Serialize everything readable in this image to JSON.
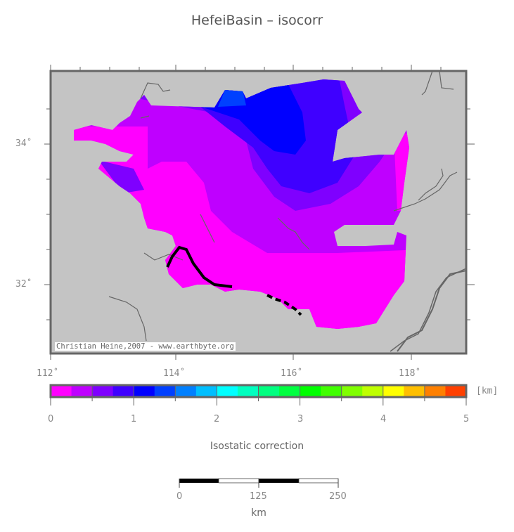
{
  "title": "HefeiBasin – isocorr",
  "map": {
    "lon_labels": [
      "112˚",
      "114˚",
      "116˚",
      "118˚"
    ],
    "lat_labels": [
      "34˚",
      "32˚"
    ],
    "credit": "Christian Heine,2007 - www.earthbyte.org",
    "background_color": "#c4c4c4"
  },
  "colorbar": {
    "unit": "[km]",
    "tick_labels": [
      "0",
      "1",
      "2",
      "3",
      "4",
      "5"
    ],
    "title": "Isostatic correction",
    "range": [
      0,
      5
    ],
    "colors": [
      "#ff00ff",
      "#bf00ff",
      "#7f00ff",
      "#3f00ff",
      "#0000ff",
      "#0040ff",
      "#0080ff",
      "#00bfff",
      "#00ffff",
      "#00ffbf",
      "#00ff80",
      "#00ff40",
      "#00ff00",
      "#40ff00",
      "#80ff00",
      "#bfff00",
      "#ffff00",
      "#ffbf00",
      "#ff8000",
      "#ff4000"
    ]
  },
  "scalebar": {
    "labels": [
      "0",
      "125",
      "250"
    ],
    "unit": "km"
  }
}
